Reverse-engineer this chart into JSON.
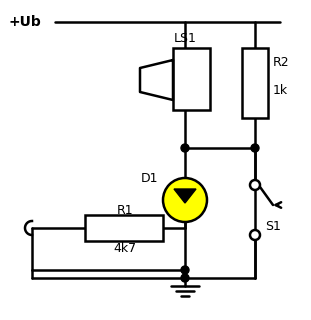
{
  "bg_color": "#ffffff",
  "line_color": "#000000",
  "line_width": 1.8,
  "vub_label": "+Ub",
  "ls1_label": "LS1",
  "r2_label": "R2",
  "r2_value": "1k",
  "d1_label": "D1",
  "r1_label": "R1",
  "r1_value": "4k7",
  "s1_label": "S1",
  "diode_fill": "#ffff00",
  "diode_border": "#000000"
}
